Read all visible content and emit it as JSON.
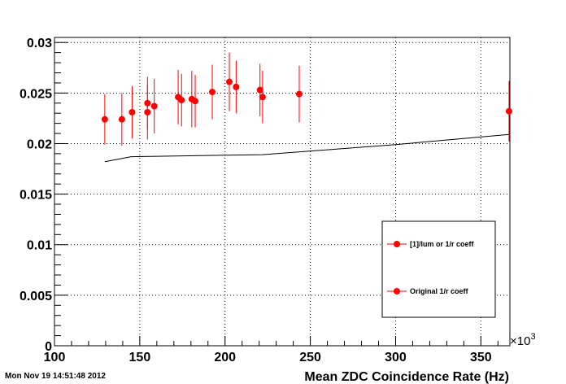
{
  "timestamp": "Mon Nov 19 14:51:48 2012",
  "chart_data": {
    "type": "scatter",
    "title": "",
    "xlabel": "Mean ZDC Coincidence Rate (Hz)",
    "x_multiplier": "×10",
    "x_multiplier_exp": "3",
    "ylabel": "",
    "xlim": [
      100,
      367
    ],
    "ylim": [
      0,
      0.0305
    ],
    "x_ticks": [
      100,
      150,
      200,
      250,
      300,
      350
    ],
    "x_tick_labels": [
      "100",
      "150",
      "200",
      "250",
      "300",
      "350"
    ],
    "y_ticks": [
      0,
      0.005,
      0.01,
      0.015,
      0.02,
      0.025,
      0.03
    ],
    "y_tick_labels": [
      "0",
      "0.005",
      "0.01",
      "0.015",
      "0.02",
      "0.025",
      "0.03"
    ],
    "grid": true,
    "legend_position": "middle-right",
    "series": [
      {
        "name": "[1]/lum or 1/r coeff",
        "style": "points-with-error-bars",
        "color": "#ff0000",
        "points": [
          {
            "x": 129.5,
            "y": 0.0224,
            "err": 0.0025
          },
          {
            "x": 139.5,
            "y": 0.0224,
            "err": 0.0026
          },
          {
            "x": 145.5,
            "y": 0.0231,
            "err": 0.0026
          },
          {
            "x": 154.5,
            "y": 0.024,
            "err": 0.0026
          },
          {
            "x": 154.5,
            "y": 0.0231,
            "err": 0.0027
          },
          {
            "x": 158.5,
            "y": 0.0237,
            "err": 0.0027
          },
          {
            "x": 172.5,
            "y": 0.0246,
            "err": 0.0027
          },
          {
            "x": 174.5,
            "y": 0.0243,
            "err": 0.0026
          },
          {
            "x": 180.5,
            "y": 0.0244,
            "err": 0.0028
          },
          {
            "x": 182.5,
            "y": 0.0242,
            "err": 0.0026
          },
          {
            "x": 192.5,
            "y": 0.0251,
            "err": 0.0027
          },
          {
            "x": 202.5,
            "y": 0.0261,
            "err": 0.0029
          },
          {
            "x": 206.5,
            "y": 0.0256,
            "err": 0.0026
          },
          {
            "x": 220.5,
            "y": 0.0253,
            "err": 0.0026
          },
          {
            "x": 222.0,
            "y": 0.0246,
            "err": 0.0026
          },
          {
            "x": 243.5,
            "y": 0.0249,
            "err": 0.0028
          },
          {
            "x": 366.5,
            "y": 0.0232,
            "err": 0.003
          }
        ]
      },
      {
        "name": "Original 1/r coeff",
        "style": "line",
        "color": "#000000",
        "points": [
          {
            "x": 129.5,
            "y": 0.0182
          },
          {
            "x": 145.0,
            "y": 0.0187
          },
          {
            "x": 222.0,
            "y": 0.0189
          },
          {
            "x": 300.0,
            "y": 0.0199
          },
          {
            "x": 366.5,
            "y": 0.0209
          }
        ]
      }
    ]
  }
}
